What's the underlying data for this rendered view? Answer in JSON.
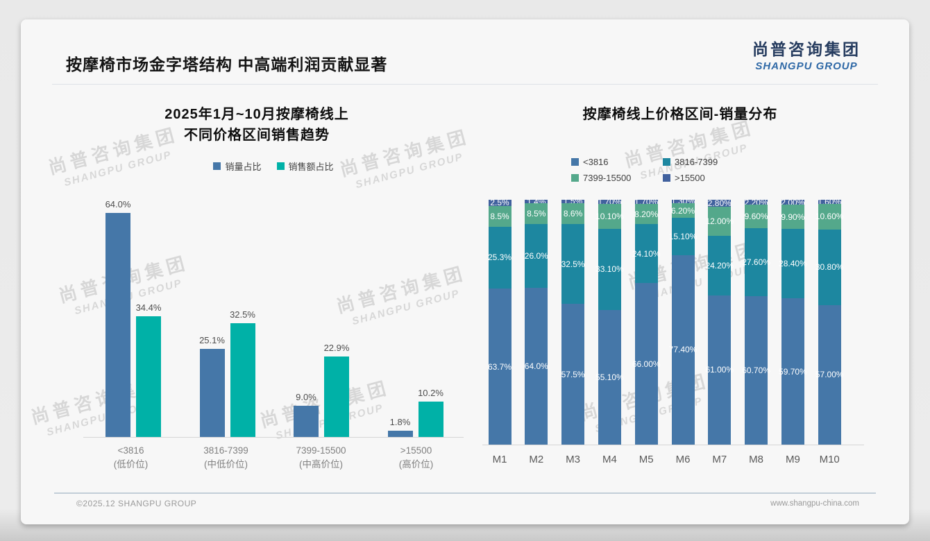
{
  "header": {
    "title": "按摩椅市场金字塔结构 中高端利润贡献显著"
  },
  "logo": {
    "cn": "尚普咨询集团",
    "en": "SHANGPU GROUP"
  },
  "watermark": {
    "cn": "尚普咨询集团",
    "en": "SHANGPU GROUP"
  },
  "footer": {
    "left": "©2025.12 SHANGPU GROUP",
    "right": "www.shangpu-china.com"
  },
  "colors": {
    "blue": "#4577a8",
    "teal_bright": "#00b1a7",
    "teal_dark": "#1d87a0",
    "green": "#54a88b",
    "indigo": "#41619e"
  },
  "chart_data": [
    {
      "type": "bar",
      "title_line1": "2025年1月~10月按摩椅线上",
      "title_line2": "不同价格区间销售趋势",
      "categories": [
        "<3816",
        "3816-7399",
        "7399-15500",
        ">15500"
      ],
      "category_subs": [
        "(低价位)",
        "(中低价位)",
        "(中高价位)",
        "(高价位)"
      ],
      "series": [
        {
          "name": "销量占比",
          "color": "#4577a8",
          "values": [
            64.0,
            25.1,
            9.0,
            1.8
          ],
          "labels": [
            "64.0%",
            "25.1%",
            "9.0%",
            "1.8%"
          ]
        },
        {
          "name": "销售额占比",
          "color": "#00b1a7",
          "values": [
            34.4,
            32.5,
            22.9,
            10.2
          ],
          "labels": [
            "34.4%",
            "32.5%",
            "22.9%",
            "10.2%"
          ]
        }
      ],
      "ylabel": "",
      "xlabel": "",
      "ylim": [
        0,
        68
      ],
      "grid": false,
      "legend_position": "top"
    },
    {
      "type": "stacked-bar",
      "title": "按摩椅线上价格区间-销量分布",
      "categories": [
        "M1",
        "M2",
        "M3",
        "M4",
        "M5",
        "M6",
        "M7",
        "M8",
        "M9",
        "M10"
      ],
      "legend_order": [
        "<3816",
        "3816-7399",
        "7399-15500",
        ">15500"
      ],
      "series": [
        {
          "name": "<3816",
          "color": "#4577a8",
          "values": [
            63.7,
            64.0,
            57.5,
            55.1,
            66.0,
            77.4,
            61.0,
            60.7,
            59.7,
            57.0
          ],
          "labels": [
            "63.7%",
            "64.0%",
            "57.5%",
            "55.10%",
            "66.00%",
            "77.40%",
            "61.00%",
            "60.70%",
            "59.70%",
            "57.00%"
          ]
        },
        {
          "name": "3816-7399",
          "color": "#1d87a0",
          "values": [
            25.3,
            26.0,
            32.5,
            33.1,
            24.1,
            15.1,
            24.2,
            27.6,
            28.4,
            30.8
          ],
          "labels": [
            "25.3%",
            "26.0%",
            "32.5%",
            "33.10%",
            "24.10%",
            "15.10%",
            "24.20%",
            "27.60%",
            "28.40%",
            "30.80%"
          ]
        },
        {
          "name": "7399-15500",
          "color": "#54a88b",
          "values": [
            8.5,
            8.5,
            8.6,
            10.1,
            8.2,
            6.2,
            12.0,
            9.6,
            9.9,
            10.6
          ],
          "labels": [
            "8.5%",
            "8.5%",
            "8.6%",
            "10.10%",
            "8.20%",
            "6.20%",
            "12.00%",
            "9.60%",
            "9.90%",
            "10.60%"
          ]
        },
        {
          "name": ">15500",
          "color": "#41619e",
          "values": [
            2.5,
            1.4,
            1.5,
            1.7,
            1.7,
            1.3,
            2.8,
            2.2,
            2.0,
            1.6
          ],
          "labels": [
            "2.5%",
            "1.4%",
            "1.5%",
            "1.70%",
            "1.70%",
            "1.30%",
            "2.80%",
            "2.20%",
            "2.00%",
            "1.60%"
          ]
        }
      ],
      "ylabel": "",
      "xlabel": "",
      "ylim": [
        0,
        100
      ],
      "grid": false,
      "legend_position": "top"
    }
  ]
}
